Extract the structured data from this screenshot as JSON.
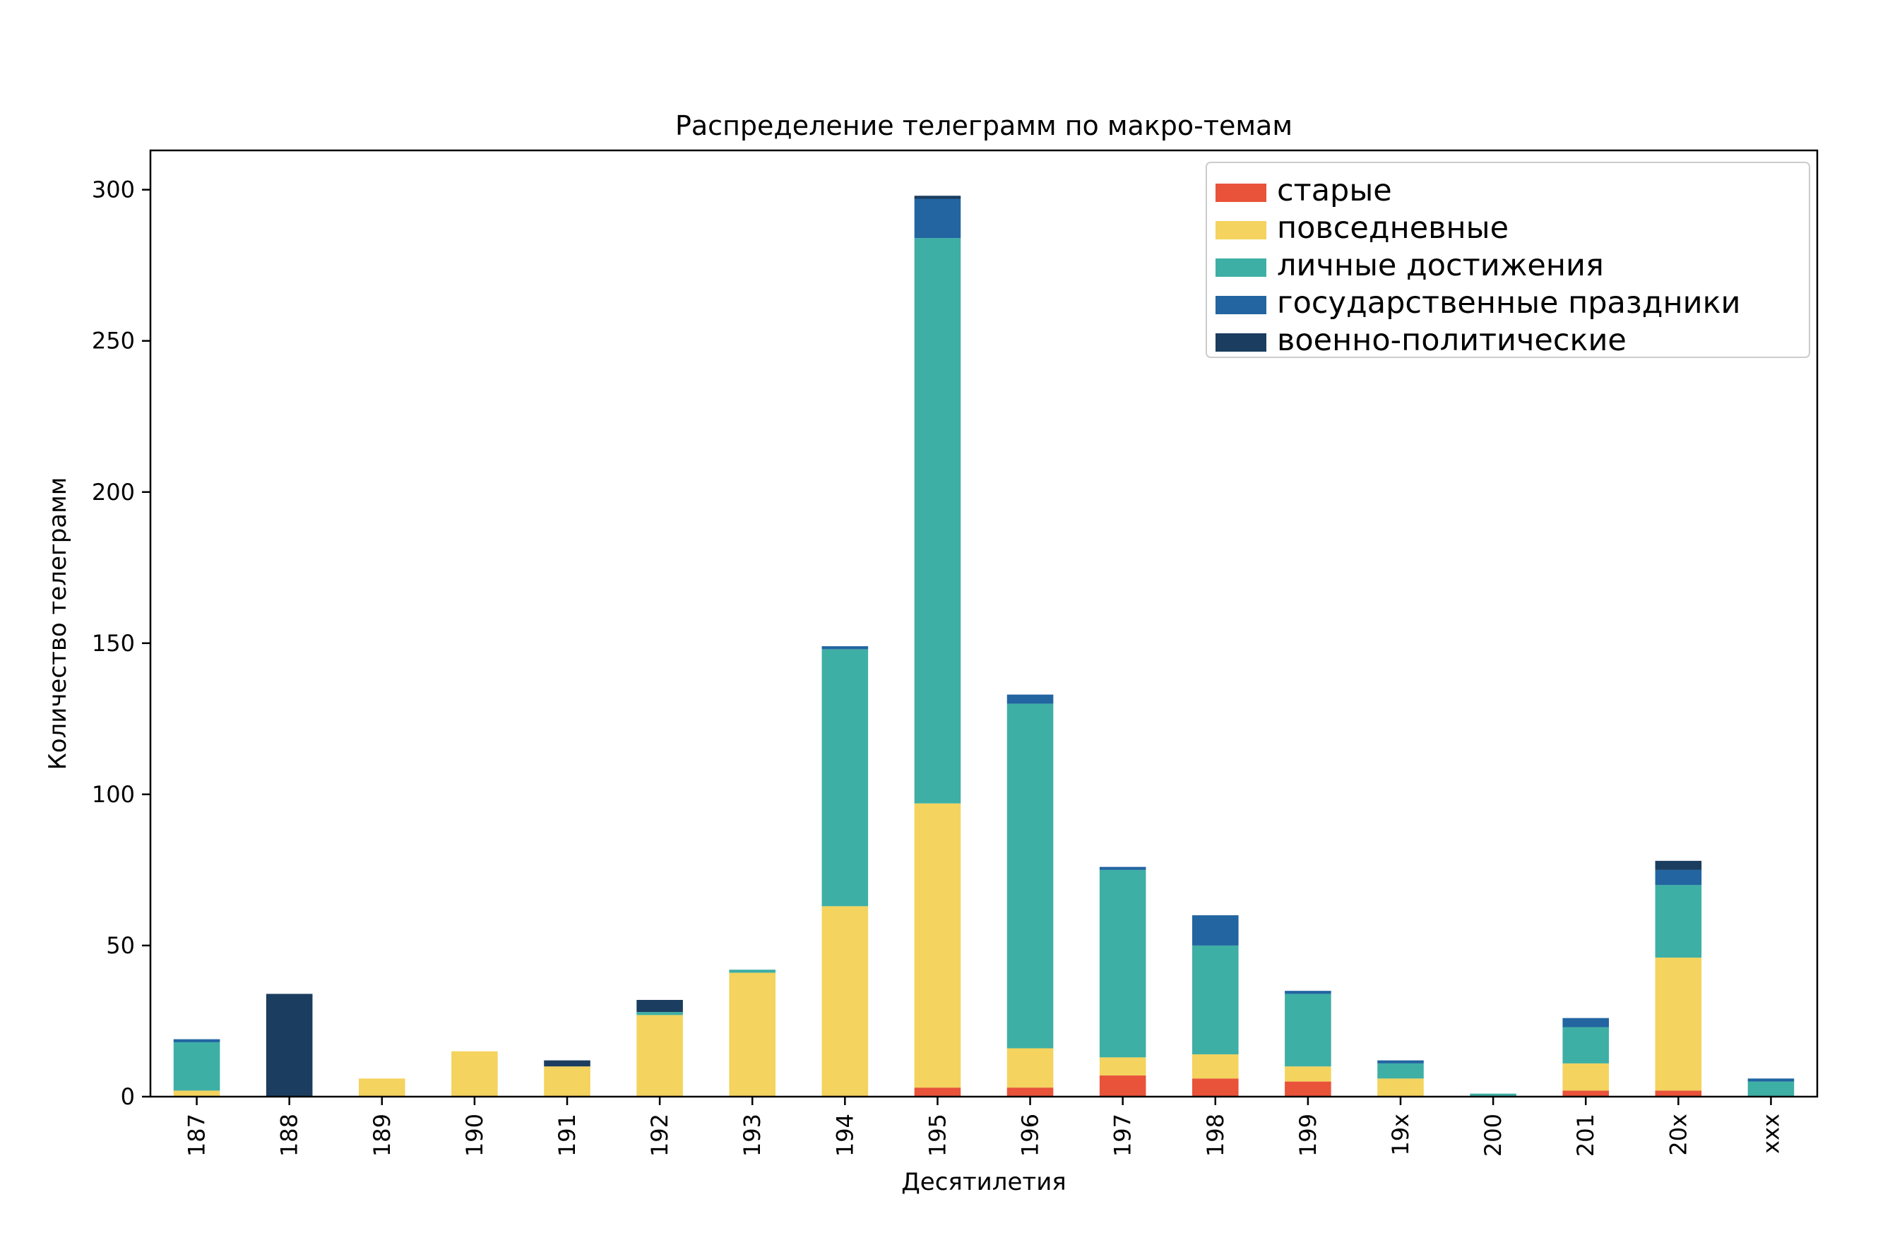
{
  "chart_data": {
    "type": "bar",
    "stacked": true,
    "title": "Распределение телеграмм по макро-темам",
    "xlabel": "Десятилетия",
    "ylabel": "Количество телеграмм",
    "ylim": [
      0,
      313
    ],
    "yticks": [
      0,
      50,
      100,
      150,
      200,
      250,
      300
    ],
    "grid": false,
    "legend_position": "top-right",
    "categories": [
      "187",
      "188",
      "189",
      "190",
      "191",
      "192",
      "193",
      "194",
      "195",
      "196",
      "197",
      "198",
      "199",
      "19x",
      "200",
      "201",
      "20x",
      "xxx"
    ],
    "series": [
      {
        "name": "старые",
        "color": "#e8533a",
        "values": [
          0,
          0,
          0,
          0,
          0,
          0,
          0,
          0,
          3,
          3,
          7,
          6,
          5,
          0,
          0,
          2,
          2,
          0
        ]
      },
      {
        "name": "повседневные",
        "color": "#f4d35e",
        "values": [
          2,
          0,
          6,
          15,
          10,
          27,
          41,
          63,
          94,
          13,
          6,
          8,
          5,
          6,
          0,
          9,
          44,
          0
        ]
      },
      {
        "name": "личные достижения",
        "color": "#3eafa5",
        "values": [
          16,
          0,
          0,
          0,
          0,
          1,
          1,
          85,
          187,
          114,
          62,
          36,
          24,
          5,
          1,
          12,
          24,
          5
        ]
      },
      {
        "name": "государственные праздники",
        "color": "#2265a1",
        "values": [
          1,
          0,
          0,
          0,
          0,
          0,
          0,
          1,
          13,
          3,
          1,
          10,
          1,
          1,
          0,
          3,
          5,
          1
        ]
      },
      {
        "name": "военно-политические",
        "color": "#1b3d5f",
        "values": [
          0,
          34,
          0,
          0,
          2,
          4,
          0,
          0,
          1,
          0,
          0,
          0,
          0,
          0,
          0,
          0,
          3,
          0
        ]
      }
    ]
  }
}
